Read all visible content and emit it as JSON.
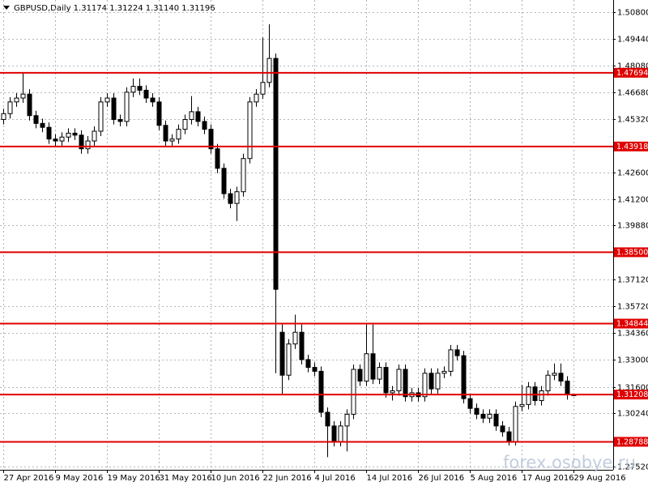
{
  "chart_data": {
    "type": "candlestick",
    "title": "GBPUSD,Daily  1.31174 1.31224 1.31140 1.31196",
    "watermark": "forex.osobye.ru",
    "categories": [
      "27 Apr 2016",
      null,
      null,
      null,
      null,
      null,
      null,
      null,
      "9 May 2016",
      null,
      null,
      null,
      null,
      null,
      null,
      null,
      "19 May 2016",
      null,
      null,
      null,
      null,
      null,
      null,
      null,
      "31 May 2016",
      null,
      null,
      null,
      null,
      null,
      null,
      null,
      "10 Jun 2016",
      null,
      null,
      null,
      null,
      null,
      null,
      null,
      "22 Jun 2016",
      null,
      null,
      null,
      null,
      null,
      null,
      null,
      "4 Jul 2016",
      null,
      null,
      null,
      null,
      null,
      null,
      null,
      "14 Jul 2016",
      null,
      null,
      null,
      null,
      null,
      null,
      null,
      "26 Jul 2016",
      null,
      null,
      null,
      null,
      null,
      null,
      null,
      "5 Aug 2016",
      null,
      null,
      null,
      null,
      null,
      null,
      null,
      "17 Aug 2016",
      null,
      null,
      null,
      null,
      null,
      null,
      null,
      "29 Aug 2016"
    ],
    "open": [
      1.453,
      1.456,
      1.462,
      1.464,
      1.466,
      1.455,
      1.451,
      1.449,
      1.443,
      1.442,
      1.444,
      1.446,
      1.445,
      1.438,
      1.442,
      1.447,
      1.462,
      1.464,
      1.453,
      1.452,
      1.467,
      1.47,
      1.468,
      1.464,
      1.462,
      1.45,
      1.442,
      1.443,
      1.448,
      1.453,
      1.457,
      1.452,
      1.448,
      1.438,
      1.428,
      1.415,
      1.41,
      1.416,
      1.433,
      1.462,
      1.466,
      1.472,
      1.4843,
      1.344,
      1.322,
      1.338,
      1.344,
      1.33,
      1.326,
      1.324,
      1.303,
      1.296,
      1.288,
      1.296,
      1.302,
      1.325,
      1.319,
      1.333,
      1.32,
      1.326,
      1.313,
      1.314,
      1.325,
      1.311,
      1.313,
      1.311,
      1.323,
      1.315,
      1.323,
      1.324,
      1.335,
      1.332,
      1.31,
      1.305,
      1.302,
      1.3,
      1.302,
      1.296,
      1.293,
      1.288,
      1.306,
      1.307,
      1.316,
      1.309,
      1.314,
      1.322,
      1.323,
      1.319,
      1.31174
    ],
    "high": [
      1.4585,
      1.4645,
      1.4665,
      1.477,
      1.4685,
      1.4575,
      1.4535,
      1.4515,
      1.4455,
      1.4465,
      1.4485,
      1.4485,
      1.4475,
      1.4445,
      1.4495,
      1.4645,
      1.4665,
      1.4665,
      1.4555,
      1.4695,
      1.474,
      1.474,
      1.4705,
      1.4665,
      1.4645,
      1.4525,
      1.4455,
      1.4505,
      1.4555,
      1.465,
      1.4595,
      1.4545,
      1.4505,
      1.4405,
      1.4305,
      1.4175,
      1.4185,
      1.4355,
      1.4645,
      1.4685,
      1.495,
      1.5018,
      1.4868,
      1.348,
      1.3405,
      1.353,
      1.348,
      1.3325,
      1.3285,
      1.3265,
      1.3055,
      1.2985,
      1.2985,
      1.3045,
      1.3275,
      1.3275,
      1.348,
      1.348,
      1.3285,
      1.3285,
      1.3165,
      1.3275,
      1.3275,
      1.3155,
      1.3155,
      1.3255,
      1.3255,
      1.3255,
      1.3265,
      1.3375,
      1.3375,
      1.3345,
      1.3125,
      1.3075,
      1.3045,
      1.3045,
      1.3045,
      1.2985,
      1.2955,
      1.3085,
      1.317,
      1.3185,
      1.3185,
      1.3165,
      1.3245,
      1.328,
      1.328,
      1.3215,
      1.31224
    ],
    "low": [
      1.4505,
      1.4535,
      1.4595,
      1.4615,
      1.4525,
      1.4485,
      1.4465,
      1.4405,
      1.4395,
      1.4395,
      1.4415,
      1.4425,
      1.4355,
      1.4355,
      1.4395,
      1.4445,
      1.4595,
      1.4505,
      1.4495,
      1.4495,
      1.4645,
      1.4655,
      1.4615,
      1.4595,
      1.4475,
      1.4395,
      1.4395,
      1.4405,
      1.4455,
      1.4505,
      1.4495,
      1.4455,
      1.4355,
      1.4255,
      1.4125,
      1.4075,
      1.401,
      1.4135,
      1.4305,
      1.4595,
      1.4635,
      1.4695,
      1.323,
      1.312,
      1.3195,
      1.3355,
      1.3275,
      1.3235,
      1.3215,
      1.3005,
      1.28,
      1.2855,
      1.2855,
      1.283,
      1.2995,
      1.3165,
      1.3165,
      1.3175,
      1.3175,
      1.3105,
      1.309,
      1.3115,
      1.3085,
      1.3085,
      1.3085,
      1.3085,
      1.3125,
      1.3125,
      1.3205,
      1.3215,
      1.3295,
      1.3075,
      1.3025,
      1.2995,
      1.2975,
      1.2975,
      1.2935,
      1.2905,
      1.286,
      1.286,
      1.3035,
      1.3045,
      1.3065,
      1.3065,
      1.3115,
      1.3195,
      1.3165,
      1.3095,
      1.3114
    ],
    "close": [
      1.456,
      1.462,
      1.464,
      1.466,
      1.455,
      1.451,
      1.449,
      1.443,
      1.442,
      1.444,
      1.446,
      1.445,
      1.438,
      1.442,
      1.447,
      1.462,
      1.464,
      1.453,
      1.452,
      1.467,
      1.47,
      1.468,
      1.464,
      1.462,
      1.45,
      1.442,
      1.443,
      1.448,
      1.453,
      1.457,
      1.452,
      1.448,
      1.438,
      1.428,
      1.415,
      1.41,
      1.416,
      1.433,
      1.462,
      1.466,
      1.472,
      1.4843,
      1.366,
      1.322,
      1.338,
      1.344,
      1.33,
      1.326,
      1.324,
      1.303,
      1.296,
      1.288,
      1.296,
      1.302,
      1.325,
      1.319,
      1.333,
      1.32,
      1.326,
      1.313,
      1.314,
      1.325,
      1.311,
      1.313,
      1.311,
      1.323,
      1.315,
      1.323,
      1.324,
      1.335,
      1.332,
      1.31,
      1.305,
      1.302,
      1.3,
      1.302,
      1.296,
      1.293,
      1.288,
      1.306,
      1.307,
      1.316,
      1.309,
      1.314,
      1.322,
      1.323,
      1.319,
      1.312,
      1.31196
    ],
    "ylim": [
      1.27354,
      1.51215
    ],
    "yticks": [
      {
        "value": 1.508,
        "label": "1.50800"
      },
      {
        "value": 1.4944,
        "label": "1.49440"
      },
      {
        "value": 1.4808,
        "label": "1.48080"
      },
      {
        "value": 1.4668,
        "label": "1.46680"
      },
      {
        "value": 1.4532,
        "label": "1.45320"
      },
      {
        "value": 1.426,
        "label": "1.42600"
      },
      {
        "value": 1.412,
        "label": "1.41200"
      },
      {
        "value": 1.3988,
        "label": "1.39880"
      },
      {
        "value": 1.3712,
        "label": "1.37120"
      },
      {
        "value": 1.3572,
        "label": "1.35720"
      },
      {
        "value": 1.3436,
        "label": "1.34360"
      },
      {
        "value": 1.33,
        "label": "1.33000"
      },
      {
        "value": 1.316,
        "label": "1.31600"
      },
      {
        "value": 1.3024,
        "label": "1.30240"
      },
      {
        "value": 1.2752,
        "label": "1.27520"
      }
    ],
    "levels": [
      {
        "value": 1.47694,
        "label": "1.47694"
      },
      {
        "value": 1.43918,
        "label": "1.43918"
      },
      {
        "value": 1.385,
        "label": "1.38500"
      },
      {
        "value": 1.34844,
        "label": "1.34844"
      },
      {
        "value": 1.31208,
        "label": "1.31208"
      },
      {
        "value": 1.28788,
        "label": "1.28788"
      }
    ],
    "level_color": "#e00000",
    "up_color": "#ffffff",
    "down_color": "#000000",
    "grid": true
  }
}
